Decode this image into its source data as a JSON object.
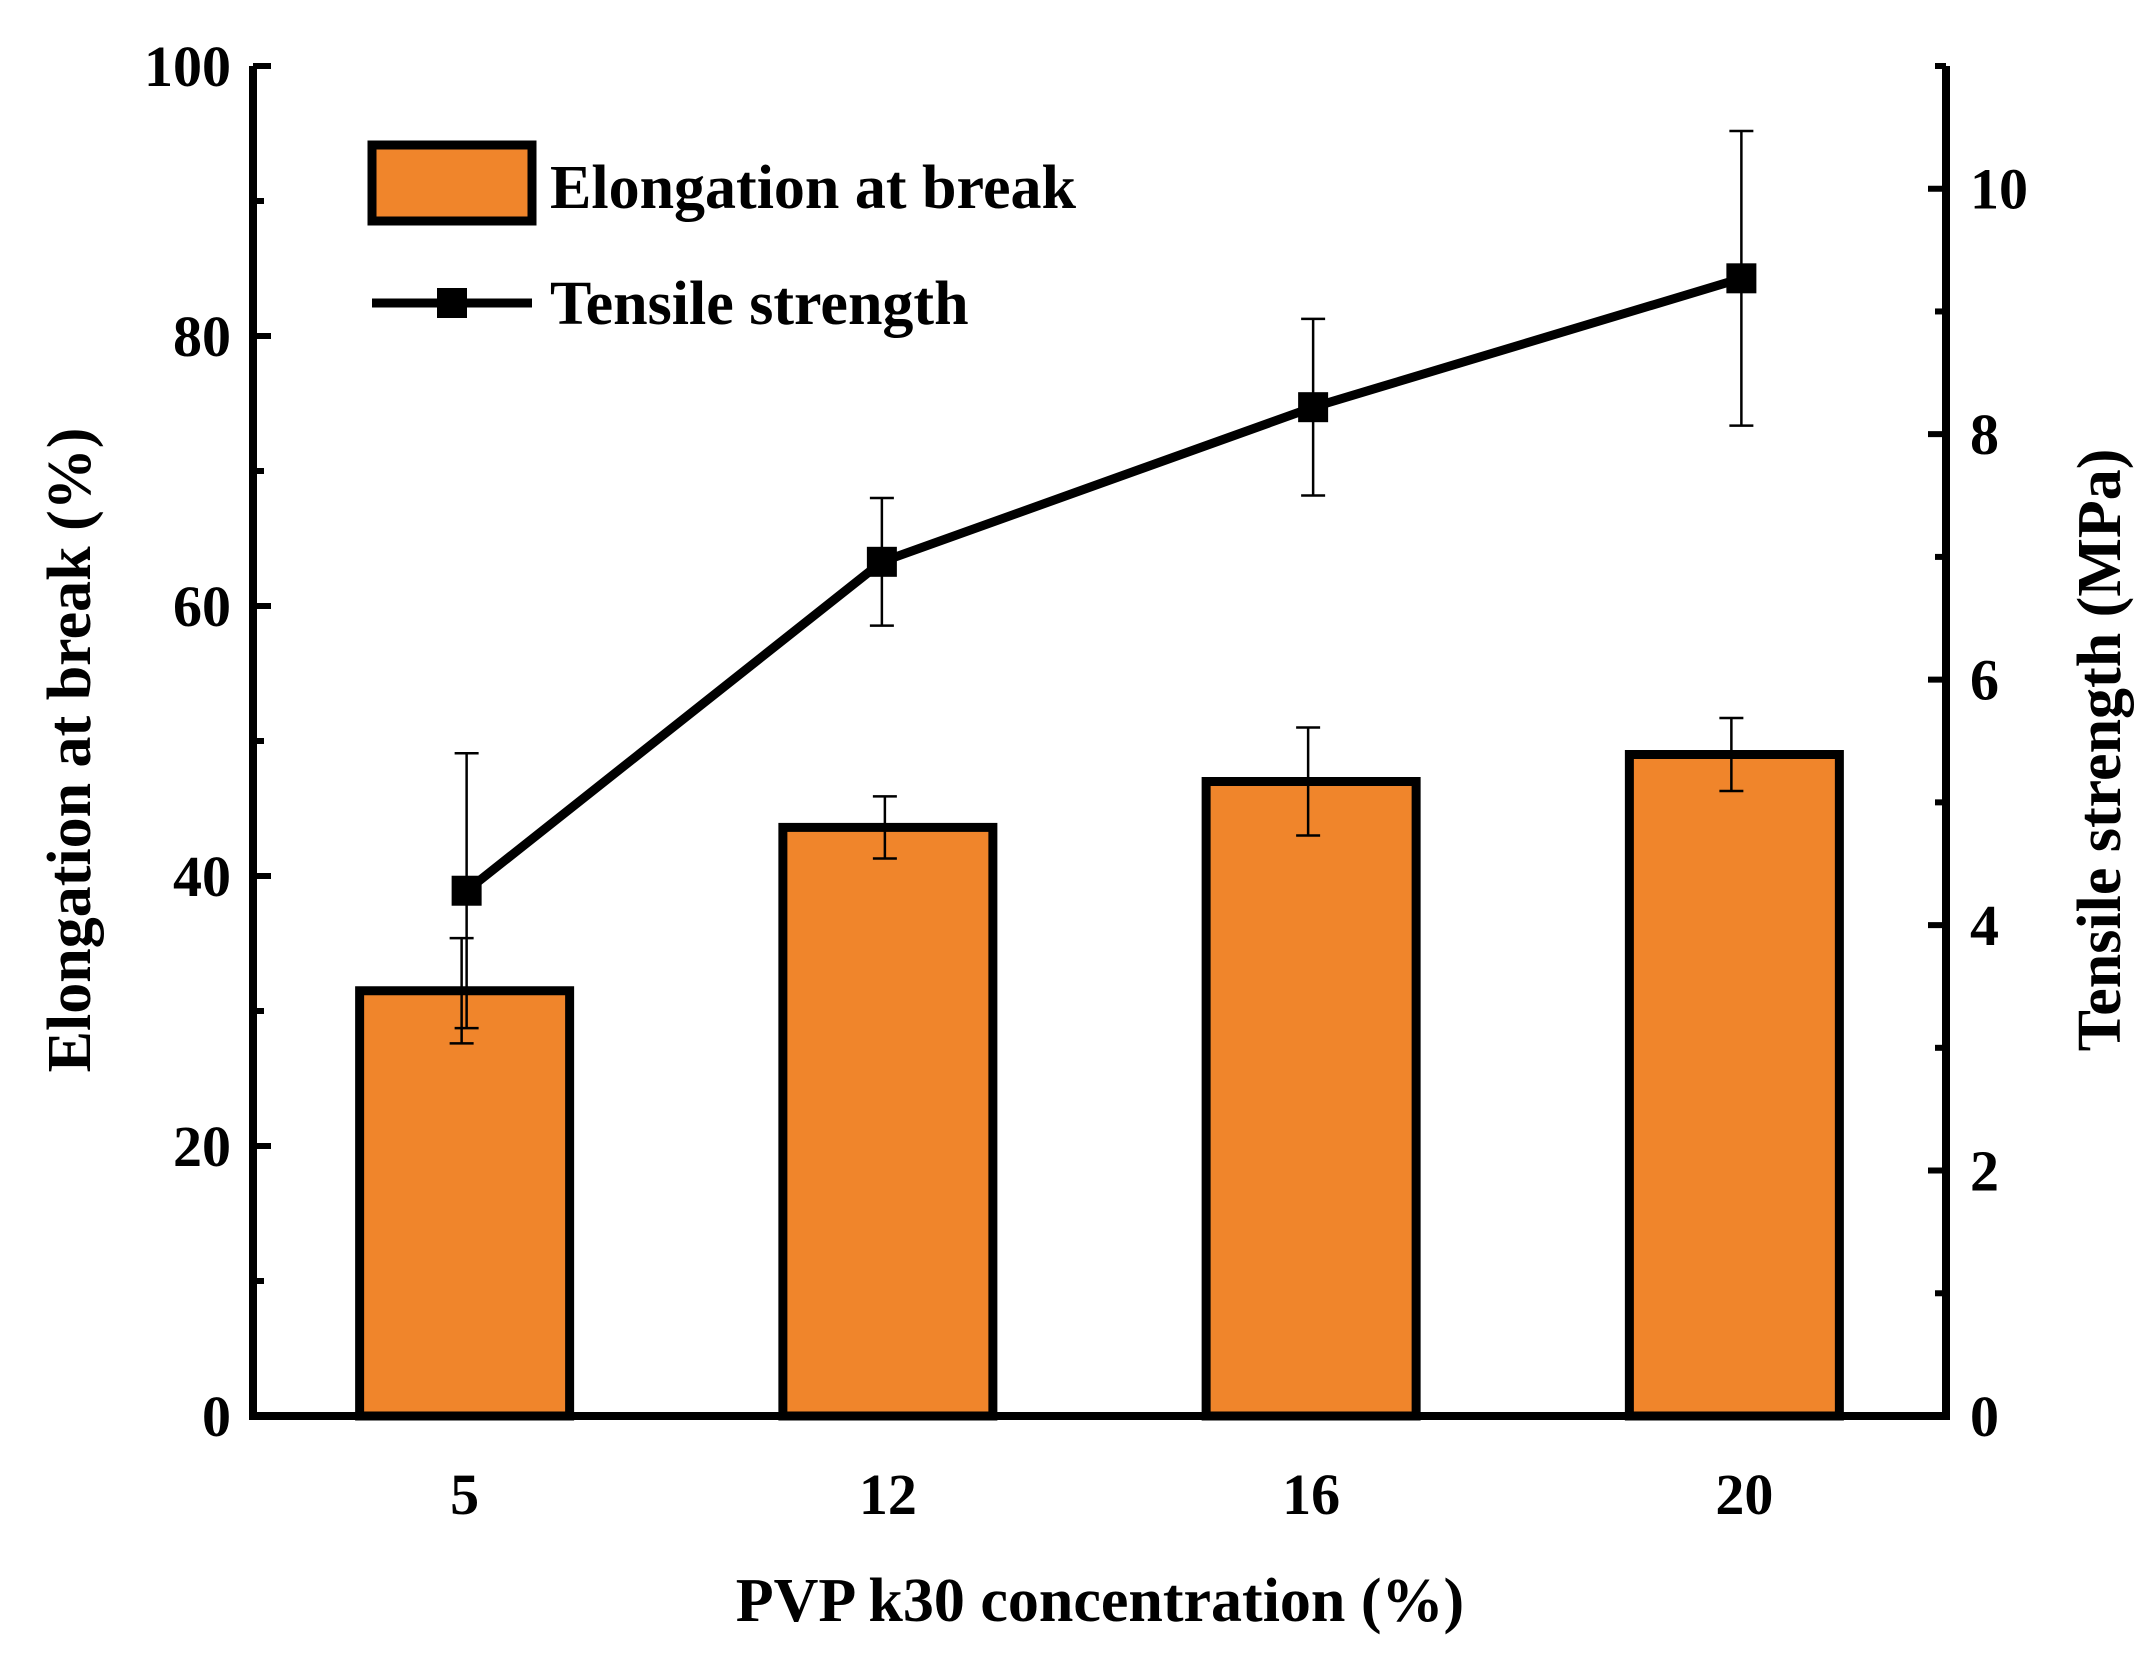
{
  "chart_data": {
    "type": "bar+line",
    "categories": [
      "5",
      "12",
      "16",
      "20"
    ],
    "xlabel": "PVP k30 concentration (%)",
    "left_axis": {
      "label": "Elongation at break (%)",
      "ylim": [
        0,
        100
      ],
      "ticks": [
        "0",
        "20",
        "40",
        "60",
        "80",
        "100"
      ]
    },
    "right_axis": {
      "label": "Tensile strength (MPa)",
      "ylim": [
        0,
        11
      ],
      "ticks": [
        "0",
        "2",
        "4",
        "6",
        "8",
        "10"
      ]
    },
    "series": [
      {
        "name": "Elongation at break",
        "type": "bar",
        "axis": "left",
        "color": "#F0852B",
        "values": [
          31.5,
          43.6,
          47.0,
          49.0
        ],
        "errors": [
          3.9,
          2.3,
          4.0,
          2.7
        ]
      },
      {
        "name": "Tensile strength",
        "type": "line",
        "axis": "right",
        "color": "#000000",
        "values": [
          4.28,
          6.96,
          8.22,
          9.27
        ],
        "errors": [
          1.12,
          0.52,
          0.72,
          1.2
        ]
      }
    ],
    "legend": {
      "position": "top-left",
      "entries": [
        "Elongation at break",
        "Tensile strength"
      ]
    }
  }
}
